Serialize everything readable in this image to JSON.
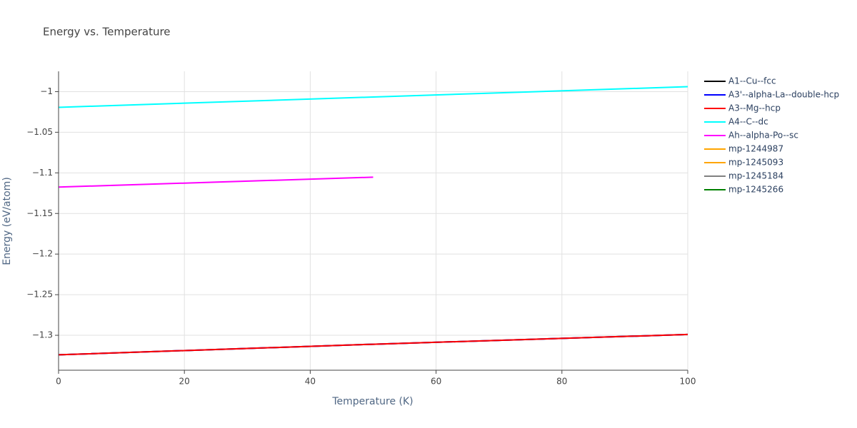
{
  "chart_data": {
    "type": "line",
    "title": "Energy vs. Temperature",
    "x_label": "Temperature (K)",
    "y_label": "Energy (eV/atom)",
    "x": [
      0,
      50,
      100
    ],
    "xlim": [
      0,
      100
    ],
    "xticks": [
      0,
      20,
      40,
      60,
      80,
      100
    ],
    "ylim": [
      -1.343,
      -0.975
    ],
    "yticks": [
      {
        "value": -1,
        "label": "−1"
      },
      {
        "value": -1.05,
        "label": "−1.05"
      },
      {
        "value": -1.1,
        "label": "−1.1"
      },
      {
        "value": -1.15,
        "label": "−1.15"
      },
      {
        "value": -1.2,
        "label": "−1.2"
      },
      {
        "value": -1.25,
        "label": "−1.25"
      },
      {
        "value": -1.3,
        "label": "−1.3"
      }
    ],
    "grid": true,
    "legend": "right",
    "series": [
      {
        "name": "A1--Cu--fcc",
        "color": "#000000",
        "values": [
          -1.324,
          -1.311,
          -1.299
        ]
      },
      {
        "name": "A3'--alpha-La--double-hcp",
        "color": "#0000ff",
        "values": [
          -1.324,
          -1.311,
          -1.299
        ]
      },
      {
        "name": "A3--Mg--hcp",
        "color": "#ff0000",
        "values": [
          -1.324,
          -1.311,
          -1.299
        ]
      },
      {
        "name": "A4--C--dc",
        "color": "#00ffff",
        "values": [
          -1.0193,
          -1.0066,
          -0.9939
        ]
      },
      {
        "name": "Ah--alpha-Po--sc",
        "color": "#ff00ff",
        "values": [
          -1.1175,
          -1.1053,
          null
        ]
      },
      {
        "name": "mp-1244987",
        "color": "#ffa500",
        "values": [
          null,
          null,
          null
        ]
      },
      {
        "name": "mp-1245093",
        "color": "#ffa500",
        "values": [
          null,
          null,
          null
        ]
      },
      {
        "name": "mp-1245184",
        "color": "#808080",
        "values": [
          null,
          null,
          null
        ]
      },
      {
        "name": "mp-1245266",
        "color": "#008000",
        "values": [
          null,
          null,
          null
        ]
      }
    ]
  }
}
